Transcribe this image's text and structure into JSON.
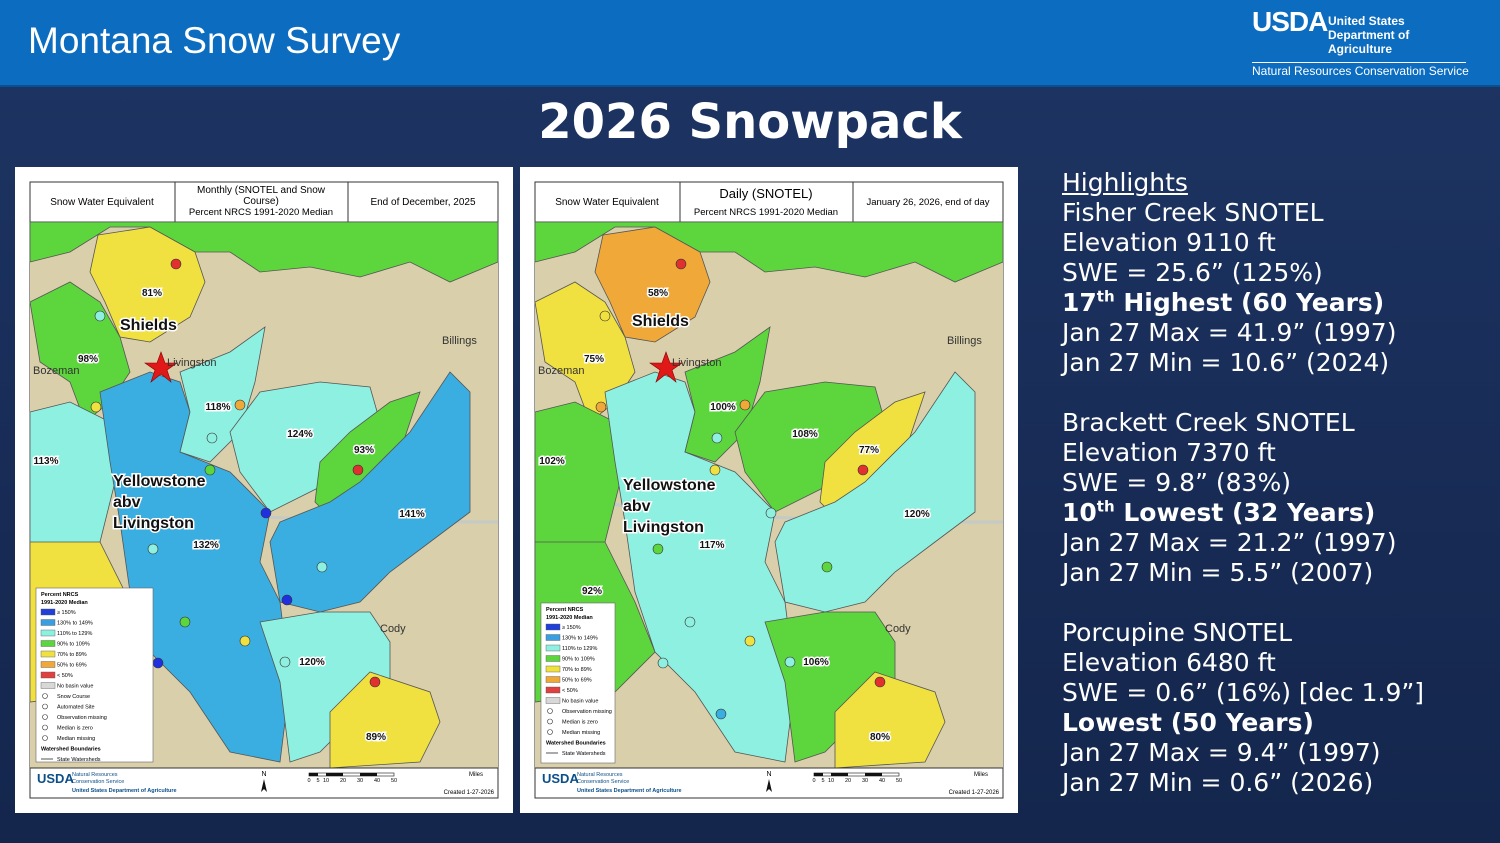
{
  "header": {
    "title": "Montana Snow Survey",
    "agency_short": "USDA",
    "agency_name": [
      "United States",
      "Department of",
      "Agriculture"
    ],
    "agency_service": "Natural Resources Conservation Service"
  },
  "slide_title": "2026 Snowpack",
  "maps": [
    {
      "header": {
        "measure": "Snow Water Equivalent",
        "product": [
          "Monthly (SNOTEL and Snow",
          "Course)"
        ],
        "basis": "Percent NRCS 1991-2020 Median",
        "date": "End of December, 2025"
      },
      "places": [
        "Livingston",
        "Bozeman",
        "Billings",
        "Cody"
      ],
      "basins": {
        "shields": "Shields",
        "yellowstone": [
          "Yellowstone",
          "abv",
          "Livingston"
        ]
      },
      "percents": [
        "81%",
        "98%",
        "118%",
        "124%",
        "93%",
        "113%",
        "132%",
        "141%",
        "120%",
        "89%"
      ],
      "legend": {
        "title": [
          "Percent NRCS",
          "1991-2020 Median"
        ],
        "items": [
          "≥ 150%",
          "130% to 149%",
          "110% to 129%",
          "90% to 109%",
          "70% to 89%",
          "50% to 69%",
          "< 50%",
          "No basin value",
          "Snow Course",
          "Automated Site",
          "Observation missing",
          "Median is zero",
          "Median missing",
          "Watershed Boundaries",
          "State Watersheds"
        ]
      },
      "footer": {
        "logo": "USDA",
        "agency": [
          "Natural Resources",
          "Conservation Service"
        ],
        "department": "United States Department of Agriculture",
        "north": "N",
        "unit": "Miles",
        "scale": [
          "0",
          "5",
          "10",
          "20",
          "30",
          "40",
          "50"
        ],
        "created": "Created 1-27-2026"
      }
    },
    {
      "header": {
        "measure": "Snow Water Equivalent",
        "product": [
          "Daily (SNOTEL)"
        ],
        "basis": "Percent NRCS 1991-2020 Median",
        "date": "January 26, 2026, end of day"
      },
      "places": [
        "Livingston",
        "Bozeman",
        "Billings",
        "Cody"
      ],
      "basins": {
        "shields": "Shields",
        "yellowstone": [
          "Yellowstone",
          "abv",
          "Livingston"
        ]
      },
      "percents": [
        "58%",
        "75%",
        "100%",
        "108%",
        "77%",
        "102%",
        "117%",
        "120%",
        "80%",
        "106%",
        "92%"
      ],
      "legend": {
        "title": [
          "Percent NRCS",
          "1991-2020 Median"
        ],
        "items": [
          "≥ 150%",
          "130% to 149%",
          "110% to 129%",
          "90% to 109%",
          "70% to 89%",
          "50% to 69%",
          "< 50%",
          "No basin value",
          "Observation missing",
          "Median is zero",
          "Median missing",
          "Watershed Boundaries",
          "State Watersheds"
        ]
      },
      "footer": {
        "logo": "USDA",
        "agency": [
          "Natural Resources",
          "Conservation Service"
        ],
        "department": "United States Department of Agriculture",
        "north": "N",
        "unit": "Miles",
        "scale": [
          "0",
          "5",
          "10",
          "20",
          "30",
          "40",
          "50"
        ],
        "created": "Created 1-27-2026"
      }
    }
  ],
  "highlights": {
    "heading": "Highlights",
    "sites": [
      {
        "name": "Fisher Creek SNOTEL",
        "elevation": "Elevation 9110 ft",
        "swe": "SWE = 25.6” (125%)",
        "rank": {
          "number": "17",
          "suffix": "th",
          "text": " Highest (60 Years)"
        },
        "max": "Jan 27 Max = 41.9” (1997)",
        "min": "Jan 27 Min = 10.6” (2024)"
      },
      {
        "name": "Brackett Creek SNOTEL",
        "elevation": "Elevation 7370 ft",
        "swe": "SWE = 9.8” (83%)",
        "rank": {
          "number": "10",
          "suffix": "th",
          "text": " Lowest (32 Years)"
        },
        "max": "Jan 27 Max = 21.2” (1997)",
        "min": "Jan 27 Min = 5.5” (2007)"
      },
      {
        "name": "Porcupine SNOTEL",
        "elevation": "Elevation 6480 ft",
        "swe": "SWE = 0.6” (16%) [dec 1.9”]",
        "rank": {
          "text": "Lowest (50 Years)"
        },
        "max": "Jan 27 Max = 9.4” (1997)",
        "min": "Jan 27 Min = 0.6” (2026)"
      }
    ]
  }
}
